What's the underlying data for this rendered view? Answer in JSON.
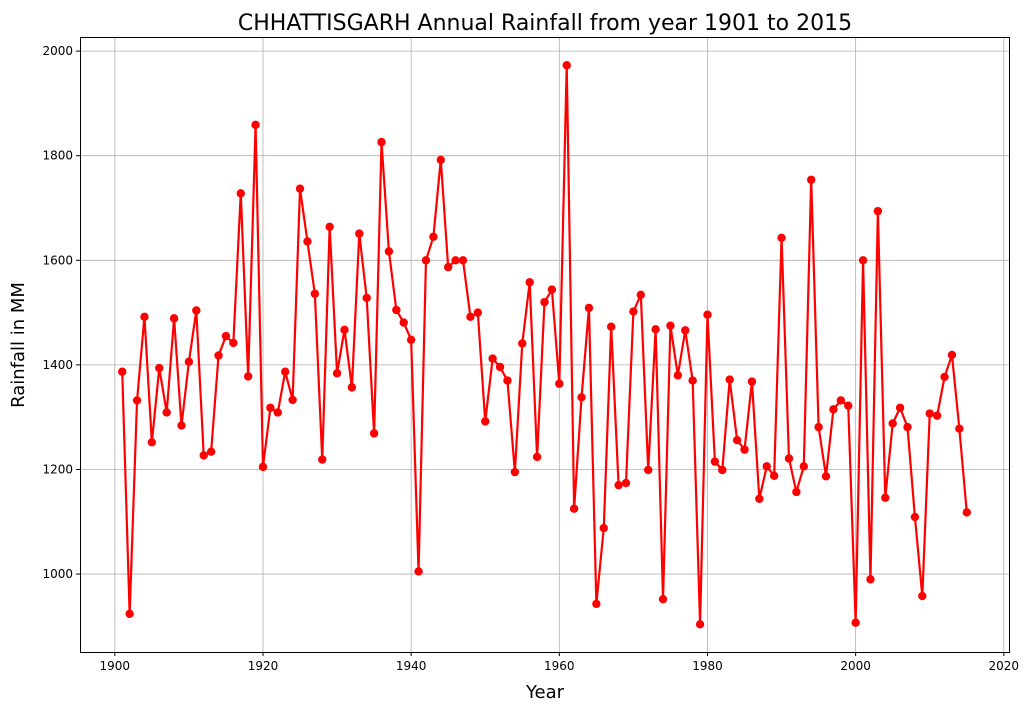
{
  "chart_data": {
    "type": "line",
    "title": "CHHATTISGARH Annual Rainfall from year 1901 to 2015",
    "xlabel": "Year",
    "ylabel": "Rainfall in MM",
    "xlim": [
      1895.3,
      2020.7
    ],
    "ylim": [
      851,
      2027
    ],
    "xticks": [
      1900,
      1920,
      1940,
      1960,
      1980,
      2000,
      2020
    ],
    "yticks": [
      1000,
      1200,
      1400,
      1600,
      1800,
      2000
    ],
    "grid": true,
    "series_color": "#ff0000",
    "series": [
      {
        "x": [
          1901,
          1902,
          1903,
          1904,
          1905,
          1906,
          1907,
          1908,
          1909,
          1910,
          1911,
          1912,
          1913,
          1914,
          1915,
          1916,
          1917,
          1918,
          1919,
          1920,
          1921,
          1922,
          1923,
          1924,
          1925,
          1926,
          1927,
          1928,
          1929,
          1930,
          1931,
          1932,
          1933,
          1934,
          1935,
          1936,
          1937,
          1938,
          1939,
          1940,
          1941,
          1942,
          1943,
          1944,
          1945,
          1946,
          1947,
          1948,
          1949,
          1950,
          1951,
          1952,
          1953,
          1954,
          1955,
          1956,
          1957,
          1958,
          1959,
          1960,
          1961,
          1962,
          1963,
          1964,
          1965,
          1966,
          1967,
          1968,
          1969,
          1970,
          1971,
          1972,
          1973,
          1974,
          1975,
          1976,
          1977,
          1978,
          1979,
          1980,
          1981,
          1982,
          1983,
          1984,
          1985,
          1986,
          1987,
          1988,
          1989,
          1990,
          1991,
          1992,
          1993,
          1994,
          1995,
          1996,
          1997,
          1998,
          1999,
          2000,
          2001,
          2002,
          2003,
          2004,
          2005,
          2006,
          2007,
          2008,
          2009,
          2010,
          2011,
          2012,
          2013,
          2014,
          2015
        ],
        "values": [
          1387,
          924,
          1332,
          1492,
          1252,
          1394,
          1309,
          1489,
          1284,
          1406,
          1504,
          1227,
          1234,
          1418,
          1455,
          1442,
          1728,
          1378,
          1859,
          1205,
          1318,
          1309,
          1387,
          1333,
          1737,
          1636,
          1536,
          1219,
          1664,
          1384,
          1467,
          1357,
          1651,
          1528,
          1269,
          1826,
          1617,
          1505,
          1481,
          1448,
          1005,
          1600,
          1645,
          1792,
          1587,
          1600,
          1600,
          1492,
          1500,
          1292,
          1412,
          1396,
          1370,
          1195,
          1441,
          1558,
          1224,
          1520,
          1544,
          1364,
          1973,
          1125,
          1338,
          1509,
          943,
          1088,
          1473,
          1170,
          1174,
          1502,
          1534,
          1199,
          1468,
          952,
          1475,
          1380,
          1466,
          1370,
          904,
          1496,
          1215,
          1199,
          1372,
          1256,
          1238,
          1368,
          1144,
          1206,
          1188,
          1643,
          1221,
          1157,
          1206,
          1754,
          1281,
          1187,
          1315,
          1332,
          1322,
          907,
          1600,
          990,
          1694,
          1146,
          1288,
          1318,
          1281,
          1109,
          958,
          1307,
          1303,
          1377,
          1419,
          1278,
          1118
        ]
      }
    ]
  }
}
